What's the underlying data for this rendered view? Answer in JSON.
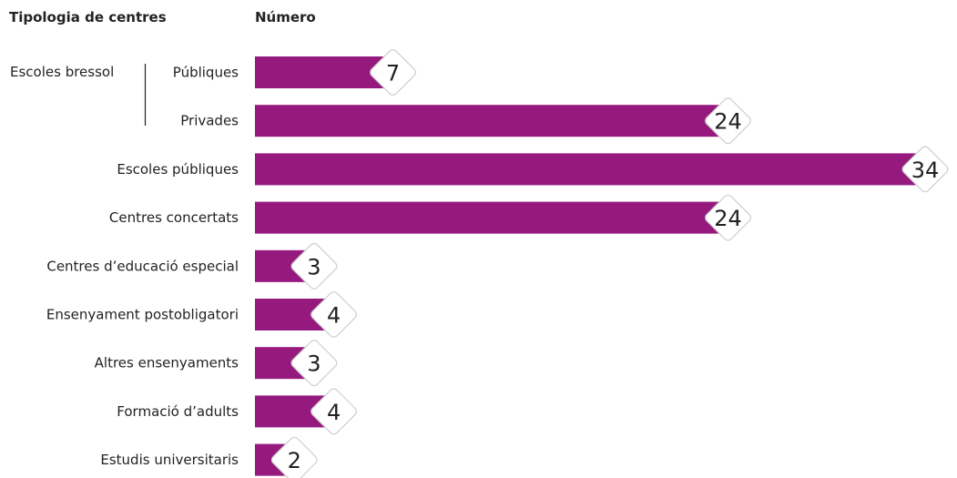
{
  "chart_data": {
    "type": "bar",
    "orientation": "horizontal",
    "category_header": "Tipologia de centres",
    "value_header": "Número",
    "group": {
      "label": "Escoles bressol",
      "members": [
        0,
        1
      ]
    },
    "categories": [
      "Públiques",
      "Privades",
      "Escoles públiques",
      "Centres concertats",
      "Centres d’educació especial",
      "Ensenyament postobligatori",
      "Altres ensenyaments",
      "Formació d’adults",
      "Estudis universitaris"
    ],
    "values": [
      7,
      24,
      34,
      24,
      3,
      4,
      3,
      4,
      2
    ],
    "xlim": [
      0,
      34
    ],
    "bar_color": "#961a7e",
    "grid": false,
    "legend": "none"
  }
}
